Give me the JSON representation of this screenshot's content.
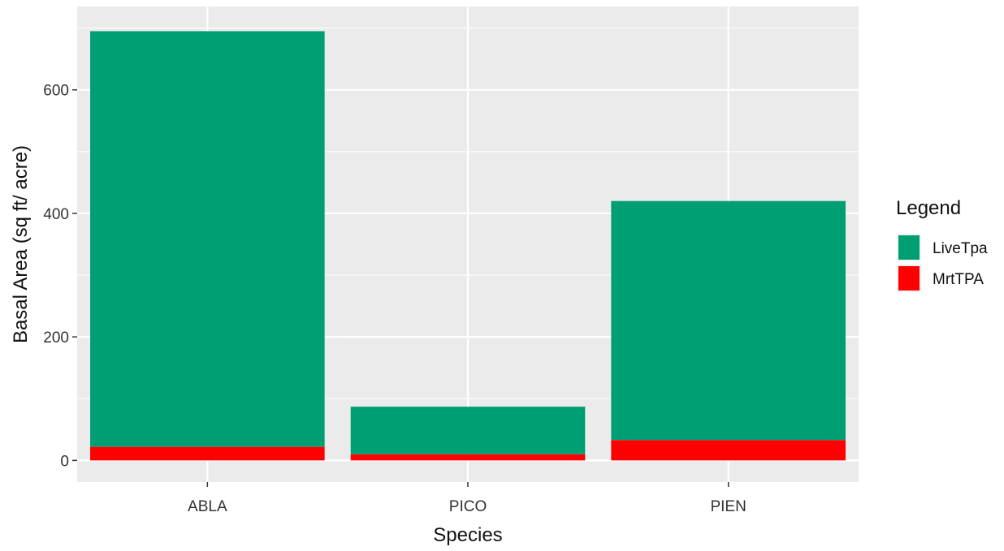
{
  "chart_data": {
    "type": "bar",
    "stacked": true,
    "categories": [
      "ABLA",
      "PICO",
      "PIEN"
    ],
    "series": [
      {
        "name": "LiveTpa",
        "values": [
          673,
          77,
          387
        ],
        "color": "#009E73"
      },
      {
        "name": "MrtTPA",
        "values": [
          22,
          10,
          33
        ],
        "color": "#FF0000"
      }
    ],
    "title": "",
    "xlabel": "Species",
    "ylabel": "Basal Area (sq ft/ acre)",
    "ylim": [
      -35,
      735
    ],
    "yticks": [
      0,
      200,
      400,
      600
    ],
    "grid": true,
    "panel_background": "#EBEBEB",
    "grid_color": "#FFFFFF",
    "legend": {
      "title": "Legend",
      "position": "right",
      "items": [
        "LiveTpa",
        "MrtTPA"
      ]
    }
  }
}
